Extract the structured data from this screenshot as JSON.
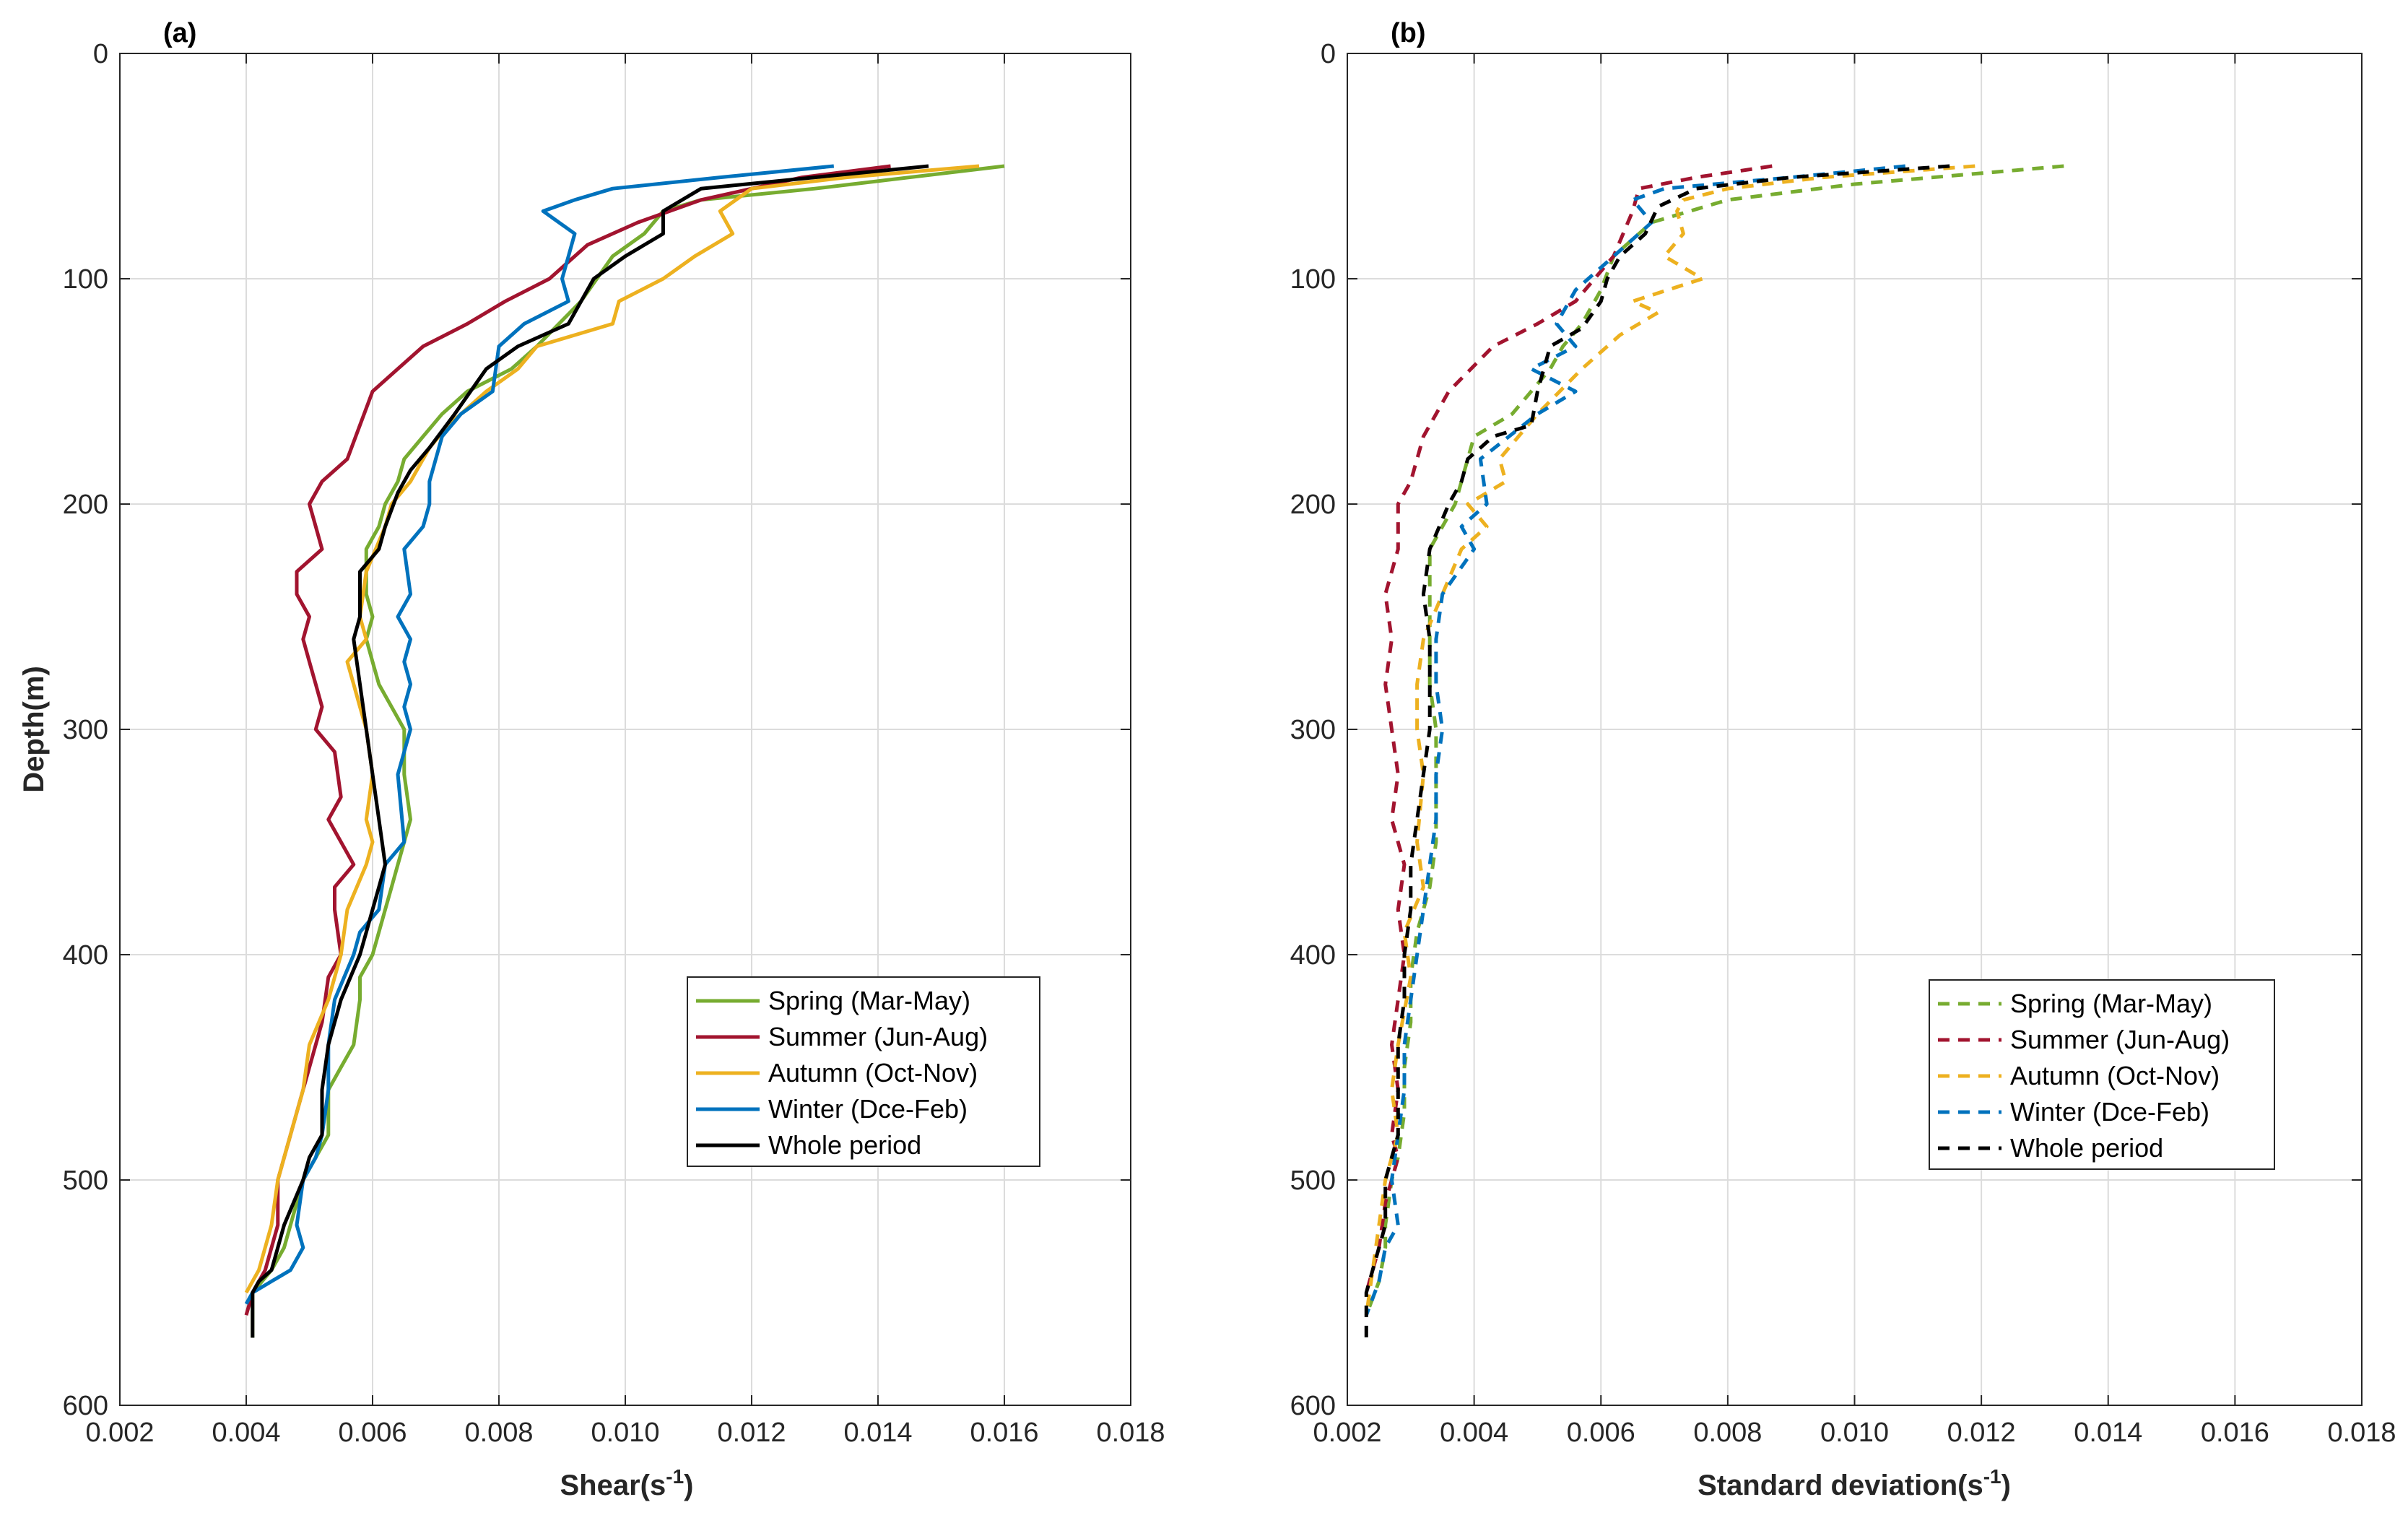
{
  "chart_data": [
    {
      "type": "line",
      "panel_label": "(a)",
      "xlabel": "Shear",
      "xlabel_unit": "(s",
      "xlabel_exp": "-1",
      "xlabel_close": ")",
      "ylabel": "Depth(m)",
      "xlim": [
        0.002,
        0.018
      ],
      "ylim": [
        0,
        600
      ],
      "yreversed": true,
      "x_ticks": [
        "0.002",
        "0.004",
        "0.006",
        "0.008",
        "0.010",
        "0.012",
        "0.014",
        "0.016",
        "0.018"
      ],
      "y_ticks": [
        "0",
        "100",
        "200",
        "300",
        "400",
        "500",
        "600"
      ],
      "grid": true,
      "legend_position": "lower-right",
      "line_style": "solid",
      "series": [
        {
          "name": "Spring (Mar-May)",
          "color": "#77AC30",
          "x": [
            0.016,
            0.013,
            0.0112,
            0.0106,
            0.0103,
            0.0098,
            0.0093,
            0.0086,
            0.0082,
            0.0075,
            0.0071,
            0.0068,
            0.0065,
            0.0064,
            0.0062,
            0.0061,
            0.0059,
            0.0059,
            0.006,
            0.0059,
            0.006,
            0.0061,
            0.0063,
            0.0065,
            0.0065,
            0.0066,
            0.0065,
            0.0064,
            0.0063,
            0.0062,
            0.006,
            0.0058,
            0.0058,
            0.0057,
            0.0055,
            0.0053,
            0.0053,
            0.0049,
            0.0047,
            0.0046,
            0.0044,
            0.0041,
            0.0041,
            0.0041
          ],
          "y": [
            50,
            60,
            65,
            70,
            80,
            90,
            110,
            130,
            140,
            150,
            160,
            170,
            180,
            190,
            200,
            210,
            220,
            240,
            250,
            260,
            270,
            280,
            290,
            300,
            320,
            340,
            350,
            360,
            370,
            380,
            400,
            410,
            420,
            440,
            450,
            460,
            480,
            500,
            520,
            530,
            540,
            550,
            560,
            570
          ]
        },
        {
          "name": "Summer (Jun-Aug)",
          "color": "#A2142F",
          "x": [
            0.0142,
            0.0128,
            0.012,
            0.0112,
            0.0102,
            0.0094,
            0.0088,
            0.0081,
            0.0075,
            0.0068,
            0.0064,
            0.006,
            0.0058,
            0.0056,
            0.0052,
            0.005,
            0.0051,
            0.0052,
            0.0048,
            0.0048,
            0.005,
            0.0049,
            0.005,
            0.0051,
            0.0052,
            0.0051,
            0.0054,
            0.0055,
            0.0053,
            0.0057,
            0.0054,
            0.0054,
            0.0055,
            0.0053,
            0.0052,
            0.005,
            0.0048,
            0.0047,
            0.0045,
            0.0045,
            0.0043,
            0.0041,
            0.004
          ],
          "y": [
            50,
            55,
            60,
            65,
            75,
            85,
            100,
            110,
            120,
            130,
            140,
            150,
            165,
            180,
            190,
            200,
            210,
            220,
            230,
            240,
            250,
            260,
            270,
            280,
            290,
            300,
            310,
            330,
            340,
            360,
            370,
            380,
            400,
            410,
            430,
            450,
            470,
            480,
            500,
            520,
            540,
            550,
            560
          ]
        },
        {
          "name": "Autumn (Oct-Nov)",
          "color": "#EDB120",
          "x": [
            0.0156,
            0.0135,
            0.012,
            0.0115,
            0.0117,
            0.0111,
            0.0106,
            0.0099,
            0.0098,
            0.0086,
            0.0083,
            0.0078,
            0.0072,
            0.0069,
            0.0066,
            0.0063,
            0.0062,
            0.0059,
            0.0058,
            0.0059,
            0.0056,
            0.0057,
            0.0058,
            0.0059,
            0.006,
            0.0059,
            0.006,
            0.0059,
            0.0056,
            0.0055,
            0.0053,
            0.005,
            0.0049,
            0.0047,
            0.0045,
            0.0044,
            0.0042,
            0.004
          ],
          "y": [
            50,
            55,
            60,
            70,
            80,
            90,
            100,
            110,
            120,
            130,
            140,
            150,
            165,
            175,
            190,
            200,
            210,
            230,
            250,
            260,
            270,
            280,
            290,
            300,
            320,
            340,
            350,
            360,
            380,
            400,
            420,
            440,
            460,
            480,
            500,
            520,
            540,
            550
          ]
        },
        {
          "name": "Winter (Dce-Feb)",
          "color": "#0072BD",
          "x": [
            0.0133,
            0.0115,
            0.0098,
            0.0092,
            0.0087,
            0.0092,
            0.0091,
            0.009,
            0.0091,
            0.0084,
            0.008,
            0.0079,
            0.0074,
            0.0071,
            0.0069,
            0.0069,
            0.0068,
            0.0065,
            0.0066,
            0.0064,
            0.0066,
            0.0065,
            0.0066,
            0.0065,
            0.0066,
            0.0064,
            0.0065,
            0.0062,
            0.0061,
            0.0058,
            0.0057,
            0.0054,
            0.0053,
            0.0053,
            0.0052,
            0.0051,
            0.0049,
            0.0048,
            0.0049,
            0.0047,
            0.0044,
            0.0041,
            0.004
          ],
          "y": [
            50,
            55,
            60,
            65,
            70,
            80,
            90,
            100,
            110,
            120,
            130,
            150,
            160,
            170,
            190,
            200,
            210,
            220,
            240,
            250,
            260,
            270,
            280,
            290,
            300,
            320,
            350,
            360,
            380,
            390,
            400,
            420,
            440,
            460,
            480,
            490,
            500,
            520,
            530,
            540,
            545,
            550,
            555
          ]
        },
        {
          "name": "Whole period",
          "color": "#000000",
          "x": [
            0.0148,
            0.013,
            0.0112,
            0.0106,
            0.0106,
            0.01,
            0.0095,
            0.0091,
            0.0083,
            0.0078,
            0.0073,
            0.0069,
            0.0066,
            0.0064,
            0.0062,
            0.0061,
            0.0058,
            0.0058,
            0.0057,
            0.0058,
            0.0059,
            0.006,
            0.0061,
            0.0062,
            0.0061,
            0.006,
            0.0059,
            0.0058,
            0.0055,
            0.0053,
            0.0052,
            0.0052,
            0.005,
            0.0049,
            0.0046,
            0.0045,
            0.0044,
            0.0042,
            0.0041,
            0.0041
          ],
          "y": [
            50,
            55,
            60,
            70,
            80,
            90,
            100,
            120,
            130,
            140,
            160,
            175,
            185,
            195,
            210,
            220,
            230,
            250,
            260,
            280,
            300,
            320,
            340,
            360,
            370,
            380,
            390,
            400,
            420,
            440,
            460,
            480,
            490,
            500,
            520,
            530,
            540,
            545,
            550,
            570
          ]
        }
      ]
    },
    {
      "type": "line",
      "panel_label": "(b)",
      "xlabel": "Standard deviation",
      "xlabel_unit": "(s",
      "xlabel_exp": "-1",
      "xlabel_close": ")",
      "ylabel": "",
      "xlim": [
        0.002,
        0.018
      ],
      "ylim": [
        0,
        600
      ],
      "yreversed": true,
      "x_ticks": [
        "0.002",
        "0.004",
        "0.006",
        "0.008",
        "0.010",
        "0.012",
        "0.014",
        "0.016",
        "0.018"
      ],
      "y_ticks": [
        "0",
        "100",
        "200",
        "300",
        "400",
        "500",
        "600"
      ],
      "grid": true,
      "legend_position": "lower-right",
      "line_style": "dashed",
      "series": [
        {
          "name": "Spring (Mar-May)",
          "color": "#77AC30",
          "x": [
            0.0133,
            0.01,
            0.008,
            0.0068,
            0.0062,
            0.006,
            0.0057,
            0.0054,
            0.0052,
            0.0049,
            0.0046,
            0.0043,
            0.004,
            0.0039,
            0.0037,
            0.0035,
            0.0033,
            0.0033,
            0.0033,
            0.0034,
            0.0034,
            0.0034,
            0.0033,
            0.0031,
            0.003,
            0.003,
            0.0029,
            0.0029,
            0.0028,
            0.0027,
            0.0026,
            0.0026,
            0.0025,
            0.0023
          ],
          "y": [
            50,
            58,
            65,
            75,
            90,
            105,
            120,
            130,
            140,
            150,
            160,
            165,
            170,
            180,
            200,
            210,
            220,
            250,
            280,
            300,
            330,
            350,
            370,
            390,
            410,
            430,
            450,
            470,
            490,
            500,
            520,
            530,
            545,
            560
          ]
        },
        {
          "name": "Summer (Jun-Aug)",
          "color": "#A2142F",
          "x": [
            0.0087,
            0.0075,
            0.0066,
            0.0065,
            0.0062,
            0.0056,
            0.005,
            0.0043,
            0.0036,
            0.0032,
            0.003,
            0.0028,
            0.0028,
            0.0026,
            0.0027,
            0.0026,
            0.0027,
            0.0028,
            0.0027,
            0.0029,
            0.0028,
            0.0029,
            0.0028,
            0.0027,
            0.0028,
            0.0027,
            0.0028,
            0.0026,
            0.0025,
            0.0023
          ],
          "y": [
            50,
            55,
            60,
            70,
            90,
            110,
            120,
            130,
            150,
            170,
            190,
            200,
            220,
            240,
            260,
            280,
            300,
            320,
            340,
            360,
            380,
            400,
            420,
            440,
            460,
            480,
            490,
            510,
            530,
            550
          ]
        },
        {
          "name": "Autumn (Oct-Nov)",
          "color": "#EDB120",
          "x": [
            0.0119,
            0.0095,
            0.008,
            0.0073,
            0.0072,
            0.0073,
            0.007,
            0.0076,
            0.0065,
            0.0069,
            0.0063,
            0.0057,
            0.005,
            0.0047,
            0.0044,
            0.0045,
            0.0039,
            0.0042,
            0.0038,
            0.0035,
            0.0032,
            0.0031,
            0.0031,
            0.0032,
            0.0031,
            0.0032,
            0.0029,
            0.003,
            0.0028,
            0.0027,
            0.0028,
            0.0026,
            0.0025,
            0.0024,
            0.0023
          ],
          "y": [
            50,
            55,
            60,
            65,
            70,
            80,
            90,
            100,
            110,
            115,
            125,
            140,
            160,
            170,
            180,
            190,
            200,
            210,
            220,
            240,
            260,
            280,
            300,
            320,
            350,
            370,
            390,
            410,
            440,
            460,
            480,
            500,
            520,
            540,
            560
          ]
        },
        {
          "name": "Winter (Dce-Feb)",
          "color": "#0072BD",
          "x": [
            0.0108,
            0.009,
            0.007,
            0.0065,
            0.0068,
            0.0064,
            0.006,
            0.0056,
            0.0053,
            0.0056,
            0.0049,
            0.0056,
            0.005,
            0.0041,
            0.0042,
            0.0038,
            0.004,
            0.0035,
            0.0034,
            0.0034,
            0.0035,
            0.0034,
            0.0034,
            0.0033,
            0.0032,
            0.0031,
            0.003,
            0.0029,
            0.0029,
            0.0028,
            0.0027,
            0.0028,
            0.0026,
            0.0025,
            0.0023
          ],
          "y": [
            50,
            55,
            60,
            65,
            75,
            85,
            95,
            105,
            120,
            130,
            140,
            150,
            160,
            180,
            200,
            210,
            220,
            240,
            260,
            280,
            300,
            320,
            340,
            360,
            380,
            400,
            420,
            440,
            460,
            480,
            500,
            520,
            530,
            545,
            560
          ]
        },
        {
          "name": "Whole period",
          "color": "#000000",
          "x": [
            0.0115,
            0.009,
            0.0075,
            0.0069,
            0.0067,
            0.0063,
            0.0061,
            0.006,
            0.0057,
            0.0052,
            0.005,
            0.0049,
            0.0043,
            0.0039,
            0.0038,
            0.0036,
            0.0033,
            0.0032,
            0.0033,
            0.0033,
            0.0033,
            0.0032,
            0.0031,
            0.003,
            0.003,
            0.0029,
            0.0029,
            0.0028,
            0.0028,
            0.0028,
            0.0027,
            0.0026,
            0.0026,
            0.0025,
            0.0024,
            0.0023,
            0.0023
          ],
          "y": [
            50,
            55,
            60,
            68,
            80,
            90,
            100,
            110,
            122,
            130,
            150,
            165,
            170,
            180,
            190,
            200,
            220,
            240,
            260,
            280,
            300,
            320,
            340,
            360,
            380,
            400,
            420,
            440,
            460,
            480,
            490,
            500,
            520,
            530,
            540,
            550,
            570
          ]
        }
      ]
    }
  ]
}
